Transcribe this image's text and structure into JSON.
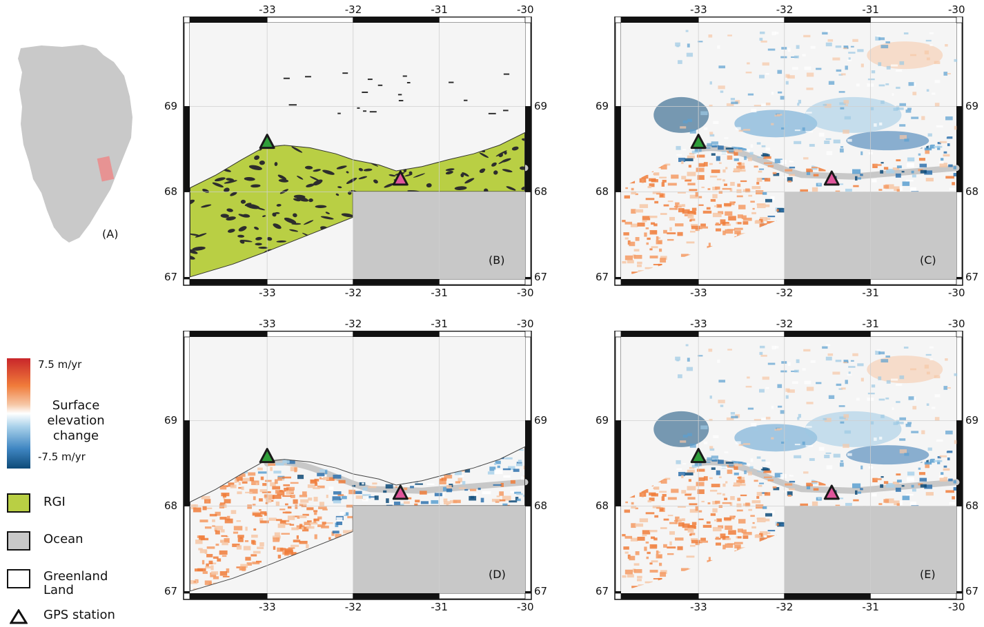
{
  "overview": {
    "label": "(A)"
  },
  "map_axes": {
    "lon_ticks": [
      "-33",
      "-32",
      "-31",
      "-30"
    ],
    "lat_ticks": [
      "69",
      "68",
      "67"
    ]
  },
  "panels": [
    {
      "id": "B",
      "label": "(B)",
      "content": "rgi"
    },
    {
      "id": "C",
      "label": "(C)",
      "content": "elevation-full"
    },
    {
      "id": "D",
      "label": "(D)",
      "content": "elevation-rgi"
    },
    {
      "id": "E",
      "label": "(E)",
      "content": "elevation-land"
    }
  ],
  "colorbar": {
    "max_label": "7.5 m/yr",
    "min_label": "-7.5 m/yr",
    "caption_lines": [
      "Surface",
      "elevation",
      "change"
    ]
  },
  "legend": {
    "items": [
      {
        "id": "rgi",
        "label_lines": [
          "RGI"
        ],
        "color": "#b9cf44"
      },
      {
        "id": "ocean",
        "label_lines": [
          "Ocean"
        ],
        "color": "#c8c8c8"
      },
      {
        "id": "land",
        "label_lines": [
          "Greenland",
          "Land"
        ],
        "color": "#ffffff"
      },
      {
        "id": "gps",
        "label_lines": [
          "GPS station"
        ],
        "color": "#000000"
      }
    ]
  },
  "gps_stations": [
    {
      "id": "gps-west",
      "color": "#2f9e3a"
    },
    {
      "id": "gps-east",
      "color": "#e0559b"
    }
  ],
  "colors": {
    "ocean": "#c8c8c8",
    "background": "#f5f5f5",
    "rgi": "#b9cf44",
    "red": "#c8262a",
    "orange": "#f07c3a",
    "lightblue": "#9cc9e4",
    "darkblue": "#0d4a78"
  }
}
